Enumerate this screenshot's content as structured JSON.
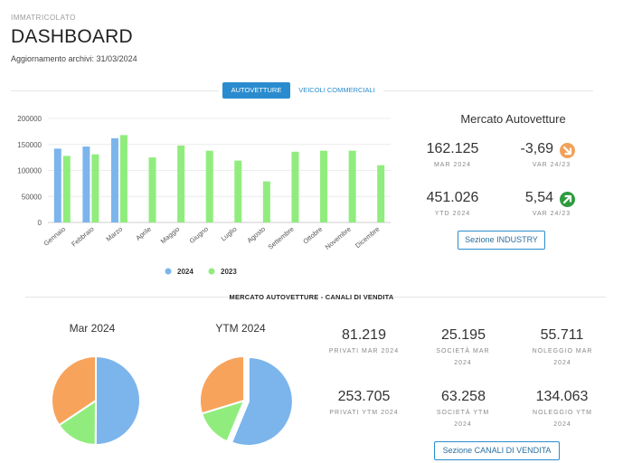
{
  "header": {
    "kicker": "IMMATRICOLATO",
    "title": "DASHBOARD",
    "updated": "Aggiornamento archivi: 31/03/2024"
  },
  "tabs": [
    {
      "label": "AUTOVETTURE",
      "active": true
    },
    {
      "label": "VEICOLI COMMERCIALI",
      "active": false
    }
  ],
  "market": {
    "title": "Mercato Autovetture",
    "mar_value": "162.125",
    "mar_label": "MAR 2024",
    "mar_var": "-3,69",
    "mar_var_label": "VAR 24/23",
    "mar_var_color": "#f0a25a",
    "ytd_value": "451.026",
    "ytd_label": "YTD 2024",
    "ytd_var": "5,54",
    "ytd_var_label": "VAR 24/23",
    "ytd_var_color": "#2e9b3f",
    "button": "Sezione INDUSTRY"
  },
  "chart_data": {
    "type": "bar",
    "categories": [
      "Gennaio",
      "Febbraio",
      "Marzo",
      "Aprile",
      "Maggio",
      "Giugno",
      "Luglio",
      "Agosto",
      "Settembre",
      "Ottobre",
      "Novembre",
      "Dicembre"
    ],
    "series": [
      {
        "name": "2024",
        "color": "#7cb5ec",
        "values": [
          142000,
          146000,
          162000,
          null,
          null,
          null,
          null,
          null,
          null,
          null,
          null,
          null
        ]
      },
      {
        "name": "2023",
        "color": "#90ed7d",
        "values": [
          128000,
          131000,
          168000,
          125000,
          148000,
          138000,
          119000,
          79000,
          136000,
          138000,
          138000,
          110000
        ]
      }
    ],
    "yticks": [
      "200000",
      "150000",
      "100000",
      "50000",
      "0"
    ],
    "ylim": [
      0,
      200000
    ],
    "legend_position": "bottom"
  },
  "sales": {
    "section_title": "MERCATO AUTOVETTURE - CANALI DI VENDITA",
    "pie_mar_title": "Mar 2024",
    "pie_ytm_title": "YTM 2024",
    "pie_mar": [
      {
        "value": 81219,
        "color": "#7cb5ec"
      },
      {
        "value": 25195,
        "color": "#90ed7d"
      },
      {
        "value": 55711,
        "color": "#f7a35c"
      }
    ],
    "pie_ytm": [
      {
        "value": 253705,
        "color": "#7cb5ec"
      },
      {
        "value": 63258,
        "color": "#90ed7d"
      },
      {
        "value": 134063,
        "color": "#f7a35c"
      }
    ],
    "privati_mar": "81.219",
    "privati_mar_label": "PRIVATI MAR 2024",
    "societa_mar": "25.195",
    "societa_mar_label": "SOCIETÀ MAR 2024",
    "noleggio_mar": "55.711",
    "noleggio_mar_label": "NOLEGGIO MAR 2024",
    "privati_ytm": "253.705",
    "privati_ytm_label": "PRIVATI YTM 2024",
    "societa_ytm": "63.258",
    "societa_ytm_label": "SOCIETÀ YTM 2024",
    "noleggio_ytm": "134.063",
    "noleggio_ytm_label": "NOLEGGIO YTM 2024",
    "button": "Sezione CANALI DI VENDITA"
  }
}
